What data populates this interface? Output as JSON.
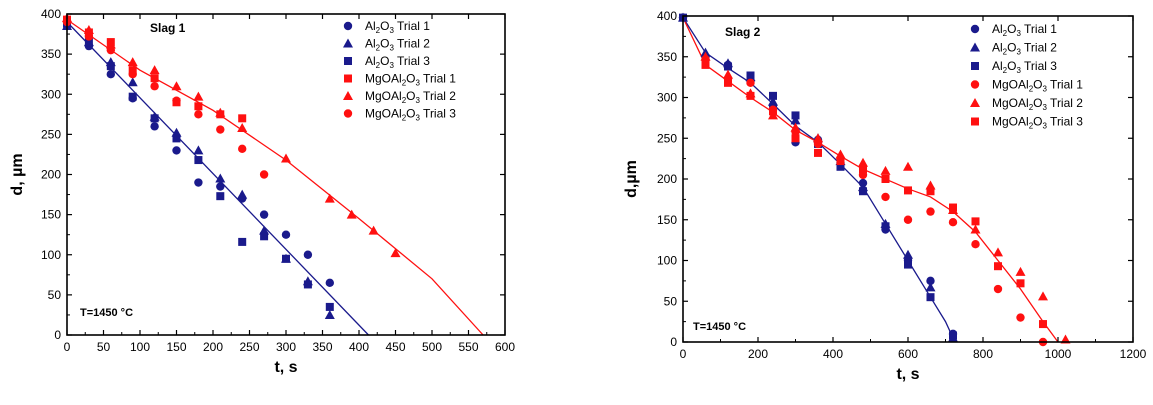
{
  "colors": {
    "navy": "#1a1a8c",
    "red": "#ff1010",
    "axis": "#000000",
    "background": "#ffffff"
  },
  "chart_data": [
    {
      "type": "scatter",
      "title": "Slag 1",
      "xlabel": "t, s",
      "ylabel": "d, µm",
      "xlim": [
        0,
        600
      ],
      "ylim": [
        0,
        400
      ],
      "xticks": [
        "0",
        "50",
        "100",
        "150",
        "200",
        "250",
        "300",
        "350",
        "400",
        "450",
        "500",
        "550",
        "600"
      ],
      "yticks": [
        "0",
        "50",
        "100",
        "150",
        "200",
        "250",
        "300",
        "350",
        "400"
      ],
      "annotation": "T=1450 °C",
      "legend_position": "top-right",
      "grid": false,
      "series": [
        {
          "name": "Al2O3 Trial 1",
          "legend_base": "Al",
          "legend_sub1": "2",
          "legend_mid": "O",
          "legend_sub2": "3",
          "legend_tail": " Trial 1",
          "marker": "circle",
          "color": "#1a1a8c",
          "x": [
            0,
            30,
            60,
            90,
            120,
            150,
            180,
            210,
            240,
            270,
            300,
            330,
            360
          ],
          "y": [
            390,
            360,
            325,
            295,
            260,
            230,
            190,
            185,
            170,
            150,
            125,
            100,
            65
          ]
        },
        {
          "name": "Al2O3 Trial 2",
          "legend_base": "Al",
          "legend_sub1": "2",
          "legend_mid": "O",
          "legend_sub2": "3",
          "legend_tail": " Trial 2",
          "marker": "triangle",
          "color": "#1a1a8c",
          "x": [
            0,
            30,
            60,
            90,
            120,
            150,
            180,
            210,
            240,
            270,
            300,
            330,
            360
          ],
          "y": [
            385,
            365,
            340,
            315,
            272,
            252,
            230,
            195,
            175,
            130,
            95,
            67,
            25
          ]
        },
        {
          "name": "Al2O3 Trial 3",
          "legend_base": "Al",
          "legend_sub1": "2",
          "legend_mid": "O",
          "legend_sub2": "3",
          "legend_tail": " Trial 3",
          "marker": "square",
          "color": "#1a1a8c",
          "x": [
            0,
            30,
            60,
            90,
            120,
            150,
            180,
            210,
            240,
            270,
            300,
            330,
            360
          ],
          "y": [
            388,
            365,
            335,
            297,
            270,
            245,
            218,
            173,
            116,
            123,
            95,
            63,
            35
          ]
        },
        {
          "name": "MgOAl2O3 Trial 1",
          "legend_base": "MgOAl",
          "legend_sub1": "2",
          "legend_mid": "O",
          "legend_sub2": "3",
          "legend_tail": " Trial 1",
          "marker": "square",
          "color": "#ff1010",
          "x": [
            0,
            30,
            60,
            90,
            120,
            150,
            180,
            210,
            240
          ],
          "y": [
            393,
            377,
            365,
            330,
            320,
            290,
            285,
            275,
            270
          ]
        },
        {
          "name": "MgOAl2O3 Trial 2",
          "legend_base": "MgOAl",
          "legend_sub1": "2",
          "legend_mid": "O",
          "legend_sub2": "3",
          "legend_tail": " Trial 2",
          "marker": "triangle",
          "color": "#ff1010",
          "x": [
            0,
            30,
            60,
            90,
            120,
            150,
            180,
            210,
            240,
            300,
            360,
            390,
            420,
            450
          ],
          "y": [
            395,
            380,
            362,
            340,
            330,
            310,
            297,
            277,
            258,
            220,
            170,
            150,
            130,
            102
          ]
        },
        {
          "name": "MgOAl2O3 Trial 3",
          "legend_base": "MgOAl",
          "legend_sub1": "2",
          "legend_mid": "O",
          "legend_sub2": "3",
          "legend_tail": " Trial 3",
          "marker": "circle",
          "color": "#ff1010",
          "x": [
            0,
            30,
            60,
            90,
            120,
            150,
            180,
            210,
            240,
            270
          ],
          "y": [
            390,
            372,
            355,
            325,
            310,
            292,
            275,
            256,
            232,
            200
          ]
        }
      ],
      "fit_lines": [
        {
          "color": "#1a1a8c",
          "x": [
            0,
            413
          ],
          "y": [
            390,
            0
          ]
        },
        {
          "color": "#ff1010",
          "x": [
            0,
            100,
            200,
            300,
            400,
            500,
            570
          ],
          "y": [
            393,
            330,
            280,
            218,
            145,
            70,
            0
          ]
        }
      ]
    },
    {
      "type": "scatter",
      "title": "Slag 2",
      "xlabel": "t, s",
      "ylabel": "d,µm",
      "xlim": [
        0,
        1200
      ],
      "ylim": [
        0,
        400
      ],
      "xticks": [
        "0",
        "200",
        "400",
        "600",
        "800",
        "1000",
        "1200"
      ],
      "yticks": [
        "0",
        "50",
        "100",
        "150",
        "200",
        "250",
        "300",
        "350",
        "400"
      ],
      "annotation": "T=1450 °C",
      "legend_position": "top-right",
      "grid": false,
      "series": [
        {
          "name": "Al2O3 Trial 1",
          "legend_base": "Al",
          "legend_sub1": "2",
          "legend_mid": "O",
          "legend_sub2": "3",
          "legend_tail": " Trial 1",
          "marker": "circle",
          "color": "#1a1a8c",
          "x": [
            0,
            60,
            120,
            180,
            240,
            300,
            360,
            420,
            480,
            540,
            600,
            660,
            720
          ],
          "y": [
            398,
            350,
            340,
            320,
            290,
            245,
            248,
            220,
            195,
            138,
            100,
            75,
            10
          ]
        },
        {
          "name": "Al2O3 Trial 2",
          "legend_base": "Al",
          "legend_sub1": "2",
          "legend_mid": "O",
          "legend_sub2": "3",
          "legend_tail": " Trial 2",
          "marker": "triangle",
          "color": "#1a1a8c",
          "x": [
            0,
            60,
            120,
            180,
            240,
            300,
            360,
            420,
            480,
            540,
            600,
            660,
            720
          ],
          "y": [
            398,
            355,
            342,
            325,
            295,
            272,
            250,
            222,
            190,
            145,
            107,
            67,
            5
          ]
        },
        {
          "name": "Al2O3 Trial 3",
          "legend_base": "Al",
          "legend_sub1": "2",
          "legend_mid": "O",
          "legend_sub2": "3",
          "legend_tail": " Trial 3",
          "marker": "square",
          "color": "#1a1a8c",
          "x": [
            0,
            60,
            120,
            180,
            240,
            300,
            360,
            420,
            480,
            540,
            600,
            660,
            720
          ],
          "y": [
            398,
            348,
            338,
            327,
            302,
            278,
            243,
            215,
            185,
            142,
            95,
            55,
            8
          ]
        },
        {
          "name": "MgOAl2O3 Trial 1",
          "legend_base": "MgOAl",
          "legend_sub1": "2",
          "legend_mid": "O",
          "legend_sub2": "3",
          "legend_tail": " Trial 1",
          "marker": "circle",
          "color": "#ff1010",
          "x": [
            60,
            120,
            180,
            240,
            300,
            360,
            420,
            480,
            540,
            600,
            660,
            720,
            780,
            840,
            900,
            960
          ],
          "y": [
            347,
            323,
            318,
            285,
            258,
            243,
            225,
            205,
            178,
            150,
            160,
            147,
            120,
            65,
            30,
            0
          ]
        },
        {
          "name": "MgOAl2O3 Trial 2",
          "legend_base": "MgOAl",
          "legend_sub1": "2",
          "legend_mid": "O",
          "legend_sub2": "3",
          "legend_tail": " Trial 2",
          "marker": "triangle",
          "color": "#ff1010",
          "x": [
            60,
            120,
            180,
            240,
            300,
            360,
            420,
            480,
            540,
            600,
            660,
            720,
            780,
            840,
            900,
            960,
            1020
          ],
          "y": [
            350,
            328,
            305,
            278,
            263,
            250,
            230,
            220,
            210,
            215,
            192,
            162,
            138,
            110,
            86,
            56,
            3
          ]
        },
        {
          "name": "MgOAl2O3 Trial 3",
          "legend_base": "MgOAl",
          "legend_sub1": "2",
          "legend_mid": "O",
          "legend_sub2": "3",
          "legend_tail": " Trial 3",
          "marker": "square",
          "color": "#ff1010",
          "x": [
            60,
            120,
            180,
            240,
            300,
            360,
            420,
            480,
            540,
            600,
            660,
            720,
            780,
            840,
            900,
            960
          ],
          "y": [
            340,
            318,
            302,
            283,
            250,
            232,
            222,
            212,
            200,
            186,
            185,
            165,
            148,
            93,
            72,
            22
          ]
        }
      ],
      "fit_lines": [
        {
          "color": "#1a1a8c",
          "x": [
            0,
            60,
            120,
            180,
            240,
            300,
            360,
            420,
            480,
            540,
            600,
            660,
            700,
            720
          ],
          "y": [
            398,
            355,
            336,
            318,
            292,
            265,
            245,
            218,
            190,
            145,
            100,
            55,
            25,
            5
          ]
        },
        {
          "color": "#ff1010",
          "x": [
            0,
            60,
            120,
            180,
            240,
            300,
            360,
            420,
            480,
            540,
            600,
            660,
            720,
            780,
            840,
            900,
            960,
            1000
          ],
          "y": [
            398,
            340,
            320,
            300,
            282,
            260,
            245,
            228,
            212,
            200,
            188,
            178,
            160,
            135,
            100,
            65,
            25,
            0
          ]
        }
      ]
    }
  ]
}
